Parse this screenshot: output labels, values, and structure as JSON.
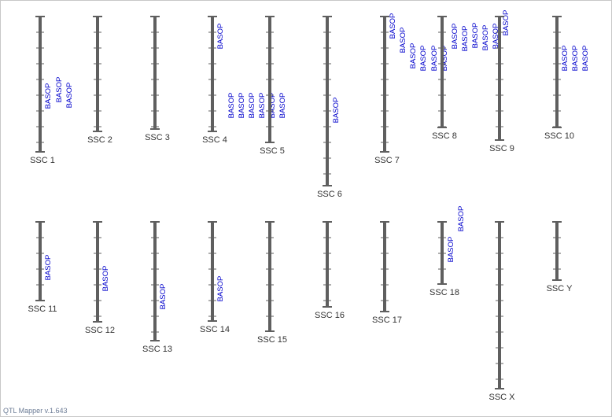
{
  "app": {
    "footer": "QTL Mapper v.1.643"
  },
  "colors": {
    "bar": "#5f5f5f",
    "tick": "#5f5f5f",
    "qtl": "#0000cc",
    "label": "#333333"
  },
  "chromosomes": [
    {
      "label": "SSC 1",
      "len_rel": 1.0,
      "qtls": [
        "BASOP",
        "BASOP",
        "BASOP"
      ]
    },
    {
      "label": "SSC 2",
      "len_rel": 0.85,
      "qtls": []
    },
    {
      "label": "SSC 3",
      "len_rel": 0.83,
      "qtls": []
    },
    {
      "label": "SSC 4",
      "len_rel": 0.85,
      "qtls": [
        "BASOP",
        "BASOP",
        "BASOP",
        "BASOP",
        "BASOP",
        "BASOP",
        "BASOP"
      ]
    },
    {
      "label": "SSC 5",
      "len_rel": 0.93,
      "qtls": []
    },
    {
      "label": "SSC 6",
      "len_rel": 1.25,
      "qtls": [
        "BASOP"
      ]
    },
    {
      "label": "SSC 7",
      "len_rel": 1.0,
      "qtls": [
        "BASOP",
        "BASOP",
        "BASOP",
        "BASOP",
        "BASOP",
        "BASOP"
      ]
    },
    {
      "label": "SSC 8",
      "len_rel": 0.82,
      "qtls": [
        "BASOP",
        "BASOP",
        "BASOP",
        "BASOP",
        "BASOP",
        "BASOP"
      ]
    },
    {
      "label": "SSC 9",
      "len_rel": 0.91,
      "qtls": []
    },
    {
      "label": "SSC 10",
      "len_rel": 0.82,
      "qtls": [
        "BASOP",
        "BASOP",
        "BASOP"
      ]
    },
    {
      "label": "SSC 11",
      "len_rel": 0.58,
      "qtls": [
        "BASOP"
      ]
    },
    {
      "label": "SSC 12",
      "len_rel": 0.74,
      "qtls": [
        "BASOP"
      ]
    },
    {
      "label": "SSC 13",
      "len_rel": 0.88,
      "qtls": [
        "BASOP"
      ]
    },
    {
      "label": "SSC 14",
      "len_rel": 0.73,
      "qtls": [
        "BASOP"
      ]
    },
    {
      "label": "SSC 15",
      "len_rel": 0.81,
      "qtls": []
    },
    {
      "label": "SSC 16",
      "len_rel": 0.63,
      "qtls": []
    },
    {
      "label": "SSC 17",
      "len_rel": 0.66,
      "qtls": []
    },
    {
      "label": "SSC 18",
      "len_rel": 0.46,
      "qtls": [
        "BASOP",
        "BASOP"
      ]
    },
    {
      "label": "SSC X",
      "len_rel": 1.23,
      "qtls": []
    },
    {
      "label": "SSC Y",
      "len_rel": 0.43,
      "qtls": []
    }
  ]
}
